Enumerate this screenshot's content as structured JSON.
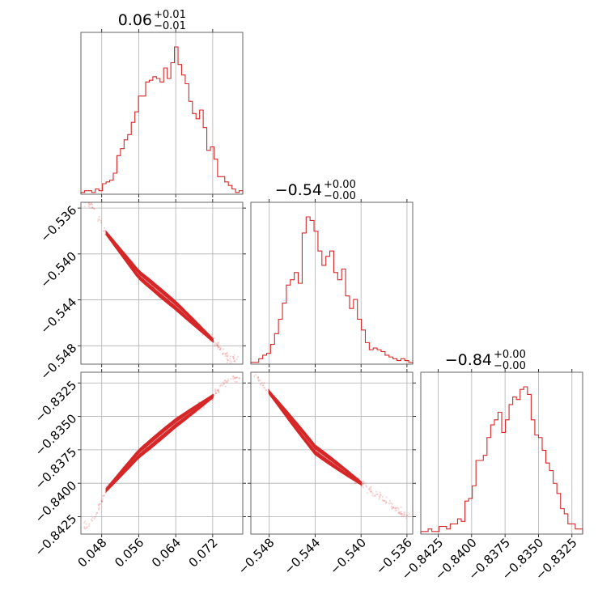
{
  "chart_data": {
    "type": "corner",
    "color": "#d62728",
    "parameters": [
      {
        "title_value": "0.06",
        "title_plus": "+0.01",
        "title_minus": "−0.01",
        "range": [
          0.0435,
          0.0785
        ],
        "ticks": [
          0.048,
          0.056,
          0.064,
          0.072
        ],
        "tick_labels": [
          "0.048",
          "0.056",
          "0.064",
          "0.072"
        ]
      },
      {
        "title_value": "−0.54",
        "title_plus": "+0.00",
        "title_minus": "−0.00",
        "range": [
          -0.5496,
          -0.5355
        ],
        "ticks": [
          -0.548,
          -0.544,
          -0.54,
          -0.536
        ],
        "tick_labels": [
          "−0.548",
          "−0.544",
          "−0.540",
          "−0.536"
        ]
      },
      {
        "title_value": "−0.84",
        "title_plus": "+0.00",
        "title_minus": "−0.00",
        "range": [
          -0.8438,
          -0.8317
        ],
        "ticks": [
          -0.8425,
          -0.84,
          -0.8375,
          -0.835,
          -0.8325
        ],
        "tick_labels": [
          "−0.8425",
          "−0.8400",
          "−0.8375",
          "−0.8350",
          "−0.8325"
        ]
      }
    ],
    "histograms": [
      [
        1,
        2,
        2,
        1,
        3,
        2,
        6,
        7,
        8,
        12,
        22,
        26,
        31,
        34,
        41,
        47,
        56,
        56,
        64,
        65,
        67,
        66,
        64,
        72,
        66,
        75,
        84,
        74,
        68,
        63,
        53,
        46,
        43,
        48,
        38,
        25,
        27,
        20,
        10,
        10,
        7,
        5,
        3,
        1,
        2
      ],
      [
        1,
        1,
        3,
        5,
        6,
        11,
        17,
        25,
        34,
        44,
        47,
        51,
        45,
        73,
        82,
        80,
        74,
        63,
        55,
        60,
        63,
        51,
        47,
        53,
        38,
        31,
        36,
        25,
        19,
        12,
        8,
        9,
        8,
        7,
        5,
        4,
        3,
        2,
        3,
        2,
        1
      ],
      [
        1,
        1,
        2,
        1,
        1,
        3,
        3,
        2,
        4,
        4,
        6,
        5,
        13,
        14,
        19,
        29,
        29,
        31,
        38,
        43,
        45,
        48,
        40,
        45,
        51,
        54,
        53,
        57,
        58,
        55,
        45,
        39,
        38,
        33,
        28,
        25,
        20,
        16,
        10,
        8,
        4,
        4,
        2,
        2
      ]
    ],
    "pair_trends": [
      {
        "x_param": 0,
        "y_param": 1,
        "x": [
          0.0455,
          0.049,
          0.056,
          0.064,
          0.072,
          0.0755
        ],
        "y": [
          -0.5355,
          -0.5382,
          -0.5418,
          -0.5445,
          -0.5475,
          -0.5492
        ]
      },
      {
        "x_param": 0,
        "y_param": 2,
        "x": [
          0.0455,
          0.049,
          0.056,
          0.064,
          0.072,
          0.0755
        ],
        "y": [
          -0.8432,
          -0.8405,
          -0.8378,
          -0.8355,
          -0.8335,
          -0.8322
        ]
      },
      {
        "x_param": 1,
        "y_param": 2,
        "x": [
          -0.5492,
          -0.548,
          -0.544,
          -0.54,
          -0.536
        ],
        "y": [
          -0.8318,
          -0.8332,
          -0.8375,
          -0.84,
          -0.8425
        ]
      }
    ]
  }
}
